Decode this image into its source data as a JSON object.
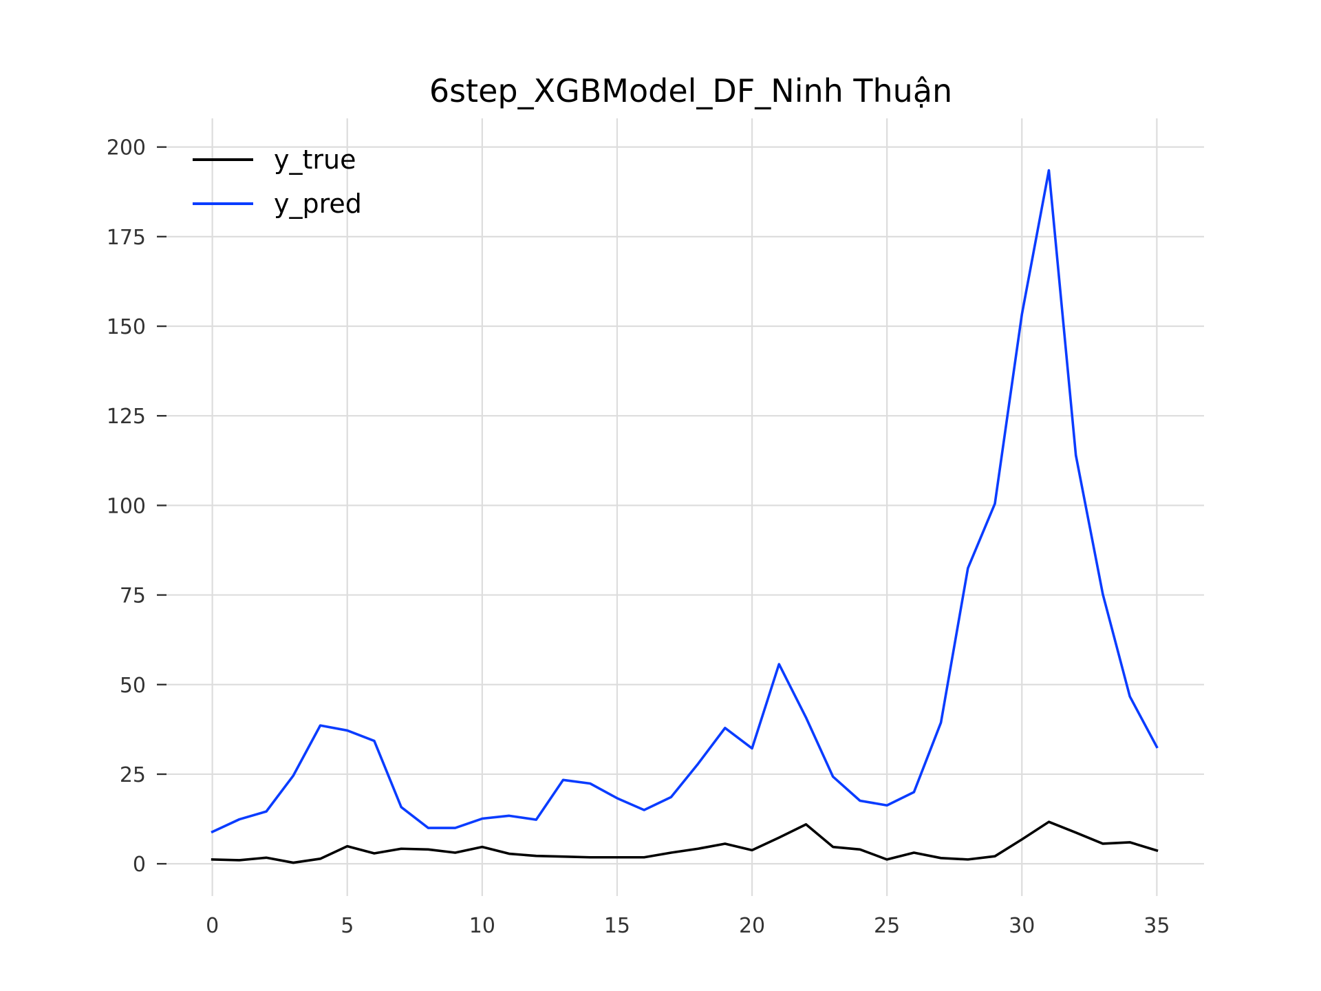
{
  "colors": {
    "y_true": "#000000",
    "y_pred": "#0a3cff",
    "grid": "#dddddd"
  },
  "chart_data": {
    "type": "line",
    "title": "6step_XGBModel_DF_Ninh Thuận",
    "xlabel": "",
    "ylabel": "",
    "xlim": [
      -1.75,
      36.75
    ],
    "ylim": [
      -9,
      208
    ],
    "xticks": [
      0,
      5,
      10,
      15,
      20,
      25,
      30,
      35
    ],
    "yticks": [
      0,
      25,
      50,
      75,
      100,
      125,
      150,
      175,
      200
    ],
    "grid": true,
    "legend_position": "top-left",
    "x": [
      0,
      1,
      2,
      3,
      4,
      5,
      6,
      7,
      8,
      9,
      10,
      11,
      12,
      13,
      14,
      15,
      16,
      17,
      18,
      19,
      20,
      21,
      22,
      23,
      24,
      25,
      26,
      27,
      28,
      29,
      30,
      31,
      32,
      33,
      34,
      35
    ],
    "series": [
      {
        "name": "y_true",
        "color": "#000000",
        "values": [
          1.2,
          1.0,
          1.7,
          0.3,
          1.4,
          4.9,
          2.9,
          4.2,
          4.0,
          3.1,
          4.7,
          2.8,
          2.2,
          2.0,
          1.8,
          1.8,
          1.8,
          3.1,
          4.2,
          5.6,
          3.8,
          7.3,
          11.0,
          4.7,
          4.0,
          1.2,
          3.1,
          1.6,
          1.2,
          2.1,
          6.8,
          11.7,
          8.7,
          5.6,
          6.0,
          3.7
        ]
      },
      {
        "name": "y_pred",
        "color": "#0a3cff",
        "values": [
          8.9,
          12.4,
          14.6,
          24.6,
          38.6,
          37.2,
          34.3,
          15.8,
          10.0,
          10.0,
          12.6,
          13.4,
          12.3,
          23.4,
          22.4,
          18.3,
          15.0,
          18.6,
          27.9,
          37.9,
          32.2,
          55.7,
          40.8,
          24.3,
          17.6,
          16.3,
          20.0,
          39.4,
          82.5,
          100.5,
          153.3,
          193.5,
          114.0,
          75.2,
          46.7,
          32.6
        ]
      }
    ]
  }
}
